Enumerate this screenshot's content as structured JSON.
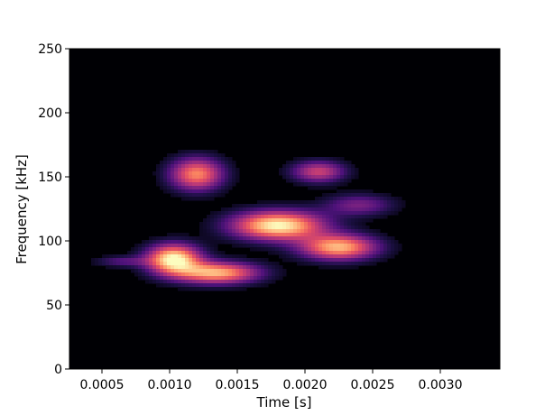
{
  "chart_data": {
    "type": "heatmap",
    "title": "",
    "xlabel": "Time [s]",
    "ylabel": "Frequency [kHz]",
    "xlim": [
      0.00026,
      0.00344
    ],
    "ylim": [
      0,
      250
    ],
    "xticks": [
      "0.0005",
      "0.0010",
      "0.0015",
      "0.0020",
      "0.0025",
      "0.0030"
    ],
    "xtick_values": [
      0.0005,
      0.001,
      0.0015,
      0.002,
      0.0025,
      0.003
    ],
    "yticks": [
      "0",
      "50",
      "100",
      "150",
      "200",
      "250"
    ],
    "ytick_values": [
      0,
      50,
      100,
      150,
      200,
      250
    ],
    "colormap": "magma",
    "background_color": "#000004",
    "components": [
      {
        "t": 0.00103,
        "f": 86,
        "intensity": 1.0,
        "t_spread": 0.00014,
        "f_spread": 8
      },
      {
        "t": 0.00135,
        "f": 75,
        "intensity": 0.85,
        "t_spread": 0.00022,
        "f_spread": 6
      },
      {
        "t": 0.0018,
        "f": 112,
        "intensity": 1.0,
        "t_spread": 0.00024,
        "f_spread": 8
      },
      {
        "t": 0.00225,
        "f": 95,
        "intensity": 0.85,
        "t_spread": 0.0002,
        "f_spread": 7
      },
      {
        "t": 0.0012,
        "f": 152,
        "intensity": 0.75,
        "t_spread": 0.00014,
        "f_spread": 9
      },
      {
        "t": 0.0021,
        "f": 154,
        "intensity": 0.55,
        "t_spread": 0.00014,
        "f_spread": 6
      },
      {
        "t": 0.0024,
        "f": 128,
        "intensity": 0.35,
        "t_spread": 0.00018,
        "f_spread": 6
      },
      {
        "t": 0.00065,
        "f": 84,
        "intensity": 0.25,
        "t_spread": 0.00014,
        "f_spread": 3
      }
    ]
  }
}
